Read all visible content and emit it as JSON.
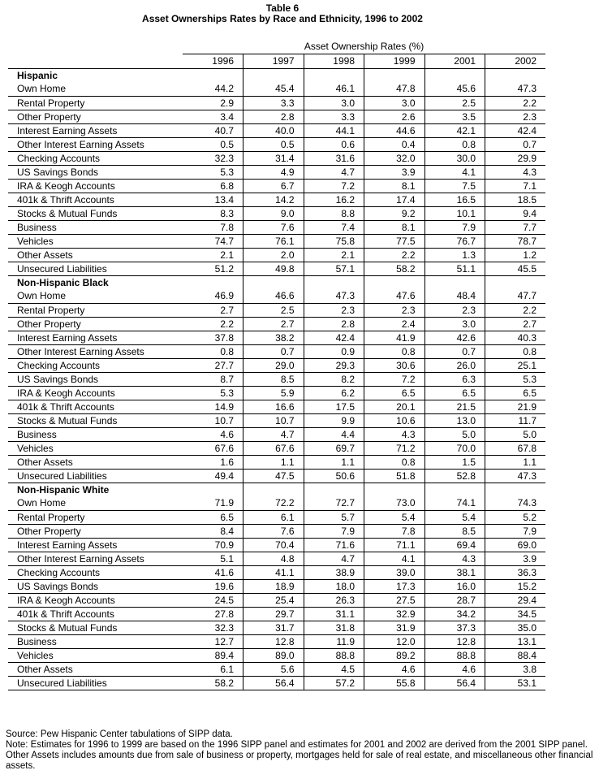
{
  "title": "Table 6",
  "subtitle": "Asset Ownerships Rates by Race and Ethnicity, 1996 to 2002",
  "table": {
    "group_header": "Asset Ownership Rates (%)",
    "years": [
      "1996",
      "1997",
      "1998",
      "1999",
      "2001",
      "2002"
    ],
    "sections": [
      {
        "name": "Hispanic",
        "rows": [
          {
            "label": "Own Home",
            "values": [
              "44.2",
              "45.4",
              "46.1",
              "47.8",
              "45.6",
              "47.3"
            ]
          },
          {
            "label": "Rental Property",
            "values": [
              "2.9",
              "3.3",
              "3.0",
              "3.0",
              "2.5",
              "2.2"
            ]
          },
          {
            "label": "Other Property",
            "values": [
              "3.4",
              "2.8",
              "3.3",
              "2.6",
              "3.5",
              "2.3"
            ]
          },
          {
            "label": "Interest Earning Assets",
            "values": [
              "40.7",
              "40.0",
              "44.1",
              "44.6",
              "42.1",
              "42.4"
            ]
          },
          {
            "label": "Other Interest Earning Assets",
            "values": [
              "0.5",
              "0.5",
              "0.6",
              "0.4",
              "0.8",
              "0.7"
            ]
          },
          {
            "label": "Checking Accounts",
            "values": [
              "32.3",
              "31.4",
              "31.6",
              "32.0",
              "30.0",
              "29.9"
            ]
          },
          {
            "label": "US Savings Bonds",
            "values": [
              "5.3",
              "4.9",
              "4.7",
              "3.9",
              "4.1",
              "4.3"
            ]
          },
          {
            "label": "IRA & Keogh Accounts",
            "values": [
              "6.8",
              "6.7",
              "7.2",
              "8.1",
              "7.5",
              "7.1"
            ]
          },
          {
            "label": "401k & Thrift Accounts",
            "values": [
              "13.4",
              "14.2",
              "16.2",
              "17.4",
              "16.5",
              "18.5"
            ]
          },
          {
            "label": "Stocks & Mutual Funds",
            "values": [
              "8.3",
              "9.0",
              "8.8",
              "9.2",
              "10.1",
              "9.4"
            ]
          },
          {
            "label": "Business",
            "values": [
              "7.8",
              "7.6",
              "7.4",
              "8.1",
              "7.9",
              "7.7"
            ]
          },
          {
            "label": "Vehicles",
            "values": [
              "74.7",
              "76.1",
              "75.8",
              "77.5",
              "76.7",
              "78.7"
            ]
          },
          {
            "label": "Other Assets",
            "values": [
              "2.1",
              "2.0",
              "2.1",
              "2.2",
              "1.3",
              "1.2"
            ]
          },
          {
            "label": "Unsecured Liabilities",
            "values": [
              "51.2",
              "49.8",
              "57.1",
              "58.2",
              "51.1",
              "45.5"
            ]
          }
        ]
      },
      {
        "name": "Non-Hispanic Black",
        "rows": [
          {
            "label": "Own Home",
            "values": [
              "46.9",
              "46.6",
              "47.3",
              "47.6",
              "48.4",
              "47.7"
            ]
          },
          {
            "label": "Rental Property",
            "values": [
              "2.7",
              "2.5",
              "2.3",
              "2.3",
              "2.3",
              "2.2"
            ]
          },
          {
            "label": "Other Property",
            "values": [
              "2.2",
              "2.7",
              "2.8",
              "2.4",
              "3.0",
              "2.7"
            ]
          },
          {
            "label": "Interest Earning Assets",
            "values": [
              "37.8",
              "38.2",
              "42.4",
              "41.9",
              "42.6",
              "40.3"
            ]
          },
          {
            "label": "Other Interest Earning Assets",
            "values": [
              "0.8",
              "0.7",
              "0.9",
              "0.8",
              "0.7",
              "0.8"
            ]
          },
          {
            "label": "Checking Accounts",
            "values": [
              "27.7",
              "29.0",
              "29.3",
              "30.6",
              "26.0",
              "25.1"
            ]
          },
          {
            "label": "US Savings Bonds",
            "values": [
              "8.7",
              "8.5",
              "8.2",
              "7.2",
              "6.3",
              "5.3"
            ]
          },
          {
            "label": "IRA & Keogh Accounts",
            "values": [
              "5.3",
              "5.9",
              "6.2",
              "6.5",
              "6.5",
              "6.5"
            ]
          },
          {
            "label": "401k & Thrift Accounts",
            "values": [
              "14.9",
              "16.6",
              "17.5",
              "20.1",
              "21.5",
              "21.9"
            ]
          },
          {
            "label": "Stocks & Mutual Funds",
            "values": [
              "10.7",
              "10.7",
              "9.9",
              "10.6",
              "13.0",
              "11.7"
            ]
          },
          {
            "label": "Business",
            "values": [
              "4.6",
              "4.7",
              "4.4",
              "4.3",
              "5.0",
              "5.0"
            ]
          },
          {
            "label": "Vehicles",
            "values": [
              "67.6",
              "67.6",
              "69.7",
              "71.2",
              "70.0",
              "67.8"
            ]
          },
          {
            "label": "Other Assets",
            "values": [
              "1.6",
              "1.1",
              "1.1",
              "0.8",
              "1.5",
              "1.1"
            ]
          },
          {
            "label": "Unsecured Liabilities",
            "values": [
              "49.4",
              "47.5",
              "50.6",
              "51.8",
              "52.8",
              "47.3"
            ]
          }
        ]
      },
      {
        "name": "Non-Hispanic White",
        "rows": [
          {
            "label": "Own Home",
            "values": [
              "71.9",
              "72.2",
              "72.7",
              "73.0",
              "74.1",
              "74.3"
            ]
          },
          {
            "label": "Rental Property",
            "values": [
              "6.5",
              "6.1",
              "5.7",
              "5.4",
              "5.4",
              "5.2"
            ]
          },
          {
            "label": "Other Property",
            "values": [
              "8.4",
              "7.6",
              "7.9",
              "7.8",
              "8.5",
              "7.9"
            ]
          },
          {
            "label": "Interest Earning Assets",
            "values": [
              "70.9",
              "70.4",
              "71.6",
              "71.1",
              "69.4",
              "69.0"
            ]
          },
          {
            "label": "Other Interest Earning Assets",
            "values": [
              "5.1",
              "4.8",
              "4.7",
              "4.1",
              "4.3",
              "3.9"
            ]
          },
          {
            "label": "Checking Accounts",
            "values": [
              "41.6",
              "41.1",
              "38.9",
              "39.0",
              "38.1",
              "36.3"
            ]
          },
          {
            "label": "US Savings Bonds",
            "values": [
              "19.6",
              "18.9",
              "18.0",
              "17.3",
              "16.0",
              "15.2"
            ]
          },
          {
            "label": "IRA & Keogh Accounts",
            "values": [
              "24.5",
              "25.4",
              "26.3",
              "27.5",
              "28.7",
              "29.4"
            ]
          },
          {
            "label": "401k & Thrift Accounts",
            "values": [
              "27.8",
              "29.7",
              "31.1",
              "32.9",
              "34.2",
              "34.5"
            ]
          },
          {
            "label": "Stocks & Mutual Funds",
            "values": [
              "32.3",
              "31.7",
              "31.8",
              "31.9",
              "37.3",
              "35.0"
            ]
          },
          {
            "label": "Business",
            "values": [
              "12.7",
              "12.8",
              "11.9",
              "12.0",
              "12.8",
              "13.1"
            ]
          },
          {
            "label": "Vehicles",
            "values": [
              "89.4",
              "89.0",
              "88.8",
              "89.2",
              "88.8",
              "88.4"
            ]
          },
          {
            "label": "Other Assets",
            "values": [
              "6.1",
              "5.6",
              "4.5",
              "4.6",
              "4.6",
              "3.8"
            ]
          },
          {
            "label": "Unsecured Liabilities",
            "values": [
              "58.2",
              "56.4",
              "57.2",
              "55.8",
              "56.4",
              "53.1"
            ]
          }
        ]
      }
    ]
  },
  "footer": {
    "source": "Source: Pew Hispanic Center tabulations of SIPP data.",
    "note": "Note: Estimates for 1996 to 1999 are based on the 1996 SIPP panel and estimates for 2001 and 2002 are derived from the 2001 SIPP panel. Other Assets includes amounts due from sale of business or property, mortgages held for sale of real estate, and miscellaneous other financial assets."
  }
}
